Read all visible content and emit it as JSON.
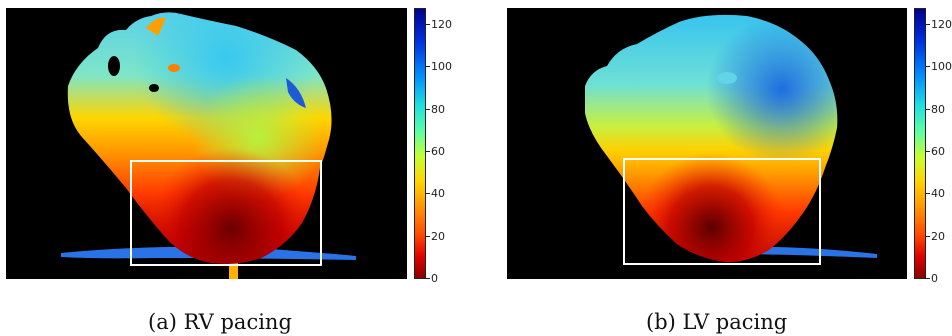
{
  "panels": [
    {
      "id": "a",
      "caption": "(a) RV pacing",
      "colorbar_ticks": [
        "0",
        "20",
        "40",
        "60",
        "80",
        "100",
        "120"
      ],
      "colorbar_max": 128
    },
    {
      "id": "b",
      "caption": "(b) LV pacing",
      "colorbar_ticks": [
        "0",
        "20",
        "40",
        "60",
        "80",
        "100",
        "120"
      ],
      "colorbar_max": 128
    }
  ],
  "colormap": [
    "#8b0000",
    "#e00000",
    "#ff4a00",
    "#ff9a00",
    "#ffd400",
    "#c8ff30",
    "#60ffa0",
    "#20e0e0",
    "#0090ff",
    "#0030e0",
    "#000090"
  ]
}
